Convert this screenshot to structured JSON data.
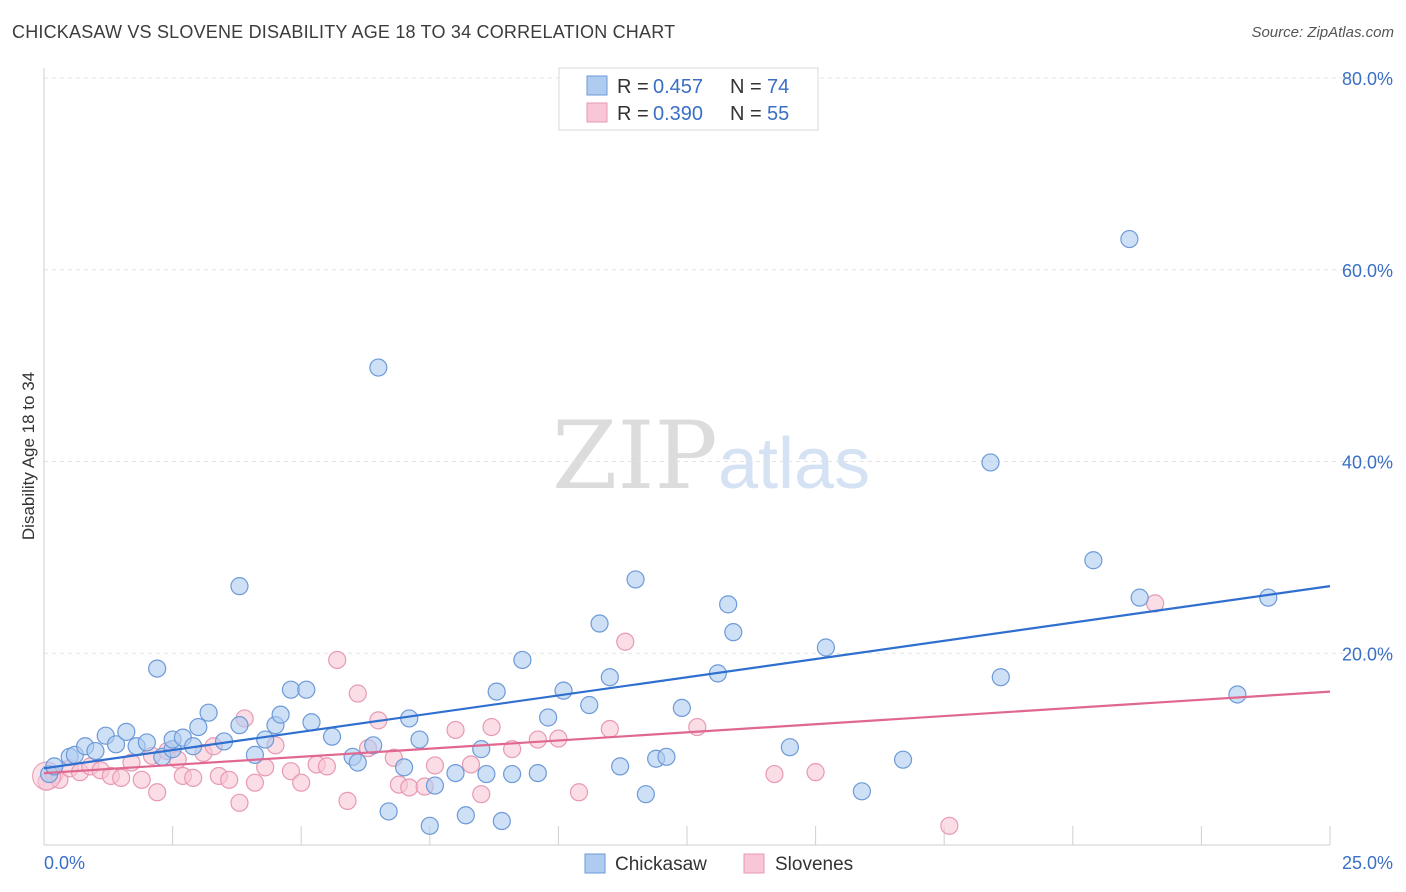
{
  "header": {
    "title": "CHICKASAW VS SLOVENE DISABILITY AGE 18 TO 34 CORRELATION CHART",
    "source": "Source: ZipAtlas.com"
  },
  "legend": {
    "r_label": "R =",
    "n_label": "N =",
    "rows": [
      {
        "r": "0.457",
        "n": "74"
      },
      {
        "r": "0.390",
        "n": "55"
      }
    ]
  },
  "watermark": {
    "zip": "ZIP",
    "atlas": "atlas"
  },
  "colors": {
    "blue_fill": "#aecbf0",
    "blue_stroke": "#6d9ad8",
    "blue_line": "#2f6fcf",
    "pink_fill": "#f8c6d6",
    "pink_stroke": "#e899b3",
    "pink_line": "#e0678f",
    "grid": "#e3e3e3",
    "tick_label": "#3a6fc4"
  },
  "chart_data": {
    "type": "scatter",
    "title": "CHICKASAW VS SLOVENE DISABILITY AGE 18 TO 34 CORRELATION CHART",
    "xlabel": "",
    "ylabel": "Disability Age 18 to 34",
    "xlim": [
      0,
      25
    ],
    "ylim": [
      0,
      80
    ],
    "x_tick_labels": [
      "0.0%",
      "25.0%"
    ],
    "y_ticks": [
      20,
      40,
      60,
      80
    ],
    "y_tick_labels": [
      "20.0%",
      "40.0%",
      "60.0%",
      "80.0%"
    ],
    "grid": true,
    "legend_position": "top-center",
    "series": [
      {
        "name": "Chickasaw",
        "color": "#aecbf0",
        "r": 0.457,
        "n": 74,
        "trend": [
          [
            0,
            8.0
          ],
          [
            25,
            27.0
          ]
        ],
        "points": [
          [
            0.1,
            7.4
          ],
          [
            0.2,
            8.2
          ],
          [
            0.5,
            9.2
          ],
          [
            0.6,
            9.4
          ],
          [
            0.8,
            10.3
          ],
          [
            1.0,
            9.8
          ],
          [
            1.2,
            11.4
          ],
          [
            1.4,
            10.5
          ],
          [
            1.6,
            11.8
          ],
          [
            1.8,
            10.3
          ],
          [
            2.0,
            10.7
          ],
          [
            2.2,
            18.4
          ],
          [
            2.3,
            9.2
          ],
          [
            2.5,
            10.0
          ],
          [
            2.5,
            11.0
          ],
          [
            2.7,
            11.2
          ],
          [
            2.9,
            10.3
          ],
          [
            3.0,
            12.3
          ],
          [
            3.2,
            13.8
          ],
          [
            3.5,
            10.8
          ],
          [
            3.8,
            27.0
          ],
          [
            3.8,
            12.5
          ],
          [
            4.1,
            9.4
          ],
          [
            4.3,
            11.0
          ],
          [
            4.5,
            12.5
          ],
          [
            4.6,
            13.6
          ],
          [
            4.8,
            16.2
          ],
          [
            5.1,
            16.2
          ],
          [
            5.2,
            12.8
          ],
          [
            5.6,
            11.3
          ],
          [
            6.0,
            9.2
          ],
          [
            6.1,
            8.6
          ],
          [
            6.4,
            10.4
          ],
          [
            6.5,
            49.8
          ],
          [
            6.7,
            3.5
          ],
          [
            7.0,
            8.1
          ],
          [
            7.1,
            13.2
          ],
          [
            7.3,
            11.0
          ],
          [
            7.5,
            2.0
          ],
          [
            7.6,
            6.2
          ],
          [
            8.0,
            7.5
          ],
          [
            8.2,
            3.1
          ],
          [
            8.5,
            10.0
          ],
          [
            8.6,
            7.4
          ],
          [
            8.8,
            16.0
          ],
          [
            8.9,
            2.5
          ],
          [
            9.1,
            7.4
          ],
          [
            9.3,
            19.3
          ],
          [
            9.6,
            7.5
          ],
          [
            9.8,
            13.3
          ],
          [
            10.1,
            16.1
          ],
          [
            10.6,
            14.6
          ],
          [
            10.8,
            23.1
          ],
          [
            11.0,
            17.5
          ],
          [
            11.2,
            8.2
          ],
          [
            11.5,
            27.7
          ],
          [
            11.7,
            5.3
          ],
          [
            11.9,
            9.0
          ],
          [
            12.1,
            9.2
          ],
          [
            12.4,
            14.3
          ],
          [
            13.1,
            17.9
          ],
          [
            13.3,
            25.1
          ],
          [
            13.4,
            22.2
          ],
          [
            14.5,
            10.2
          ],
          [
            15.2,
            20.6
          ],
          [
            15.9,
            5.6
          ],
          [
            16.7,
            8.9
          ],
          [
            18.4,
            39.9
          ],
          [
            18.6,
            17.5
          ],
          [
            20.4,
            29.7
          ],
          [
            21.1,
            63.2
          ],
          [
            21.3,
            25.8
          ],
          [
            23.2,
            15.7
          ],
          [
            23.8,
            25.8
          ]
        ]
      },
      {
        "name": "Slovenes",
        "color": "#f8c6d6",
        "r": 0.39,
        "n": 55,
        "trend": [
          [
            0,
            7.5
          ],
          [
            25,
            16.0
          ]
        ],
        "points": [
          [
            0.05,
            6.6
          ],
          [
            0.2,
            7.3
          ],
          [
            0.3,
            6.8
          ],
          [
            0.5,
            8.0
          ],
          [
            0.7,
            7.6
          ],
          [
            0.9,
            8.2
          ],
          [
            1.1,
            7.8
          ],
          [
            1.3,
            7.2
          ],
          [
            1.5,
            7.0
          ],
          [
            1.7,
            8.6
          ],
          [
            1.9,
            6.8
          ],
          [
            2.1,
            9.3
          ],
          [
            2.2,
            5.5
          ],
          [
            2.4,
            9.8
          ],
          [
            2.6,
            8.9
          ],
          [
            2.7,
            7.2
          ],
          [
            2.9,
            7.0
          ],
          [
            3.1,
            9.6
          ],
          [
            3.3,
            10.3
          ],
          [
            3.4,
            7.2
          ],
          [
            3.6,
            6.8
          ],
          [
            3.8,
            4.4
          ],
          [
            3.9,
            13.2
          ],
          [
            4.1,
            6.5
          ],
          [
            4.3,
            8.1
          ],
          [
            4.5,
            10.4
          ],
          [
            4.8,
            7.7
          ],
          [
            5.0,
            6.5
          ],
          [
            5.3,
            8.4
          ],
          [
            5.5,
            8.2
          ],
          [
            5.7,
            19.3
          ],
          [
            5.9,
            4.6
          ],
          [
            6.1,
            15.8
          ],
          [
            6.3,
            10.1
          ],
          [
            6.5,
            13.0
          ],
          [
            6.8,
            9.1
          ],
          [
            6.9,
            6.3
          ],
          [
            7.1,
            6.0
          ],
          [
            7.4,
            6.1
          ],
          [
            7.6,
            8.3
          ],
          [
            8.0,
            12.0
          ],
          [
            8.3,
            8.4
          ],
          [
            8.5,
            5.3
          ],
          [
            8.7,
            12.3
          ],
          [
            9.1,
            10.0
          ],
          [
            9.6,
            11.0
          ],
          [
            10.0,
            11.1
          ],
          [
            10.4,
            5.5
          ],
          [
            11.0,
            12.1
          ],
          [
            11.3,
            21.2
          ],
          [
            12.7,
            12.3
          ],
          [
            14.2,
            7.4
          ],
          [
            15.0,
            7.6
          ],
          [
            17.6,
            2.0
          ],
          [
            21.6,
            25.2
          ]
        ]
      }
    ]
  }
}
